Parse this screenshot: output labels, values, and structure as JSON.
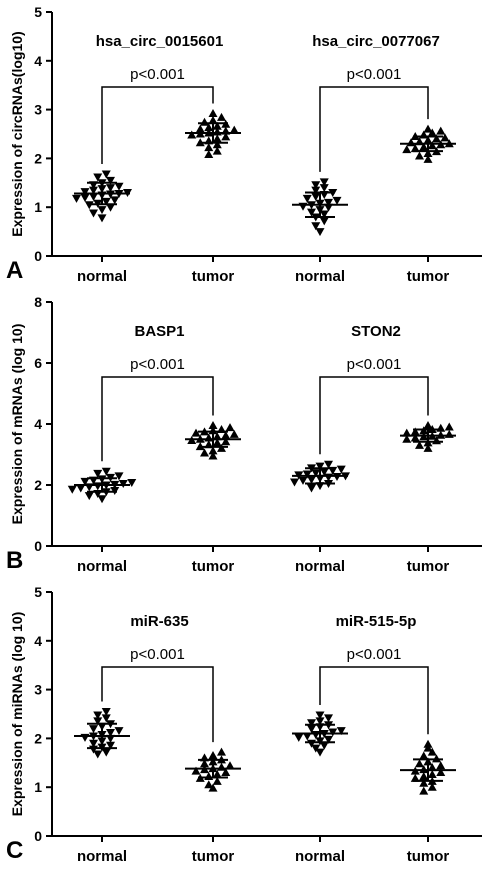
{
  "chart_data": [
    {
      "type": "scatter",
      "panel_label": "A",
      "ylabel": "Expression of circRNAs(log10)",
      "ylim": [
        0,
        5
      ],
      "yticks": [
        0,
        1,
        2,
        3,
        4,
        5
      ],
      "categories": [
        "normal",
        "tumor",
        "normal",
        "tumor"
      ],
      "groups": [
        {
          "title": "hsa_circ_0015601",
          "pvalue": "p<0.001",
          "series": [
            {
              "category": "normal",
              "marker": "triangle-down",
              "mean": 1.28,
              "sd": 0.22,
              "values": [
                0.78,
                0.88,
                0.95,
                1.0,
                1.05,
                1.08,
                1.12,
                1.15,
                1.18,
                1.2,
                1.22,
                1.25,
                1.27,
                1.28,
                1.3,
                1.32,
                1.35,
                1.38,
                1.4,
                1.43,
                1.46,
                1.5,
                1.55,
                1.62,
                1.68
              ]
            },
            {
              "category": "tumor",
              "marker": "triangle-up",
              "mean": 2.52,
              "sd": 0.2,
              "values": [
                2.08,
                2.15,
                2.22,
                2.28,
                2.32,
                2.36,
                2.4,
                2.44,
                2.48,
                2.5,
                2.52,
                2.54,
                2.56,
                2.58,
                2.6,
                2.63,
                2.66,
                2.7,
                2.74,
                2.78,
                2.84,
                2.92
              ]
            }
          ]
        },
        {
          "title": "hsa_circ_0077067",
          "pvalue": "p<0.001",
          "series": [
            {
              "category": "normal",
              "marker": "triangle-down",
              "mean": 1.05,
              "sd": 0.25,
              "values": [
                0.5,
                0.62,
                0.72,
                0.8,
                0.86,
                0.9,
                0.95,
                1.0,
                1.02,
                1.05,
                1.08,
                1.1,
                1.14,
                1.18,
                1.22,
                1.26,
                1.3,
                1.35,
                1.4,
                1.46,
                1.52
              ]
            },
            {
              "category": "tumor",
              "marker": "triangle-up",
              "mean": 2.3,
              "sd": 0.15,
              "values": [
                1.98,
                2.05,
                2.1,
                2.14,
                2.18,
                2.2,
                2.23,
                2.26,
                2.28,
                2.3,
                2.32,
                2.34,
                2.37,
                2.4,
                2.42,
                2.45,
                2.48,
                2.52,
                2.56,
                2.6
              ]
            }
          ]
        }
      ]
    },
    {
      "type": "scatter",
      "panel_label": "B",
      "ylabel": "Expression of mRNAs (log 10)",
      "ylim": [
        0,
        8
      ],
      "yticks": [
        0,
        2,
        4,
        6,
        8
      ],
      "categories": [
        "normal",
        "tumor",
        "normal",
        "tumor"
      ],
      "groups": [
        {
          "title": "BASP1",
          "pvalue": "p<0.001",
          "series": [
            {
              "category": "normal",
              "marker": "triangle-down",
              "mean": 2.0,
              "sd": 0.22,
              "values": [
                1.55,
                1.65,
                1.72,
                1.78,
                1.82,
                1.86,
                1.9,
                1.94,
                1.97,
                2.0,
                2.02,
                2.05,
                2.08,
                2.12,
                2.16,
                2.2,
                2.25,
                2.3,
                2.38,
                2.45
              ]
            },
            {
              "category": "tumor",
              "marker": "triangle-up",
              "mean": 3.5,
              "sd": 0.25,
              "values": [
                2.95,
                3.05,
                3.12,
                3.2,
                3.26,
                3.32,
                3.38,
                3.42,
                3.46,
                3.5,
                3.54,
                3.58,
                3.62,
                3.66,
                3.7,
                3.74,
                3.78,
                3.82,
                3.88,
                3.95
              ]
            }
          ]
        },
        {
          "title": "STON2",
          "pvalue": "p<0.001",
          "series": [
            {
              "category": "normal",
              "marker": "triangle-down",
              "mean": 2.3,
              "sd": 0.25,
              "values": [
                1.9,
                1.98,
                2.05,
                2.1,
                2.15,
                2.18,
                2.22,
                2.26,
                2.28,
                2.3,
                2.33,
                2.36,
                2.4,
                2.44,
                2.48,
                2.52,
                2.56,
                2.62,
                2.68
              ]
            },
            {
              "category": "tumor",
              "marker": "triangle-up",
              "mean": 3.62,
              "sd": 0.2,
              "values": [
                3.2,
                3.3,
                3.38,
                3.45,
                3.5,
                3.54,
                3.58,
                3.6,
                3.63,
                3.66,
                3.7,
                3.74,
                3.78,
                3.82,
                3.86,
                3.9,
                3.95
              ]
            }
          ]
        }
      ]
    },
    {
      "type": "scatter",
      "panel_label": "C",
      "ylabel": "Expression of miRNAs (log 10)",
      "ylim": [
        0,
        5
      ],
      "yticks": [
        0,
        1,
        2,
        3,
        4,
        5
      ],
      "categories": [
        "normal",
        "tumor",
        "normal",
        "tumor"
      ],
      "groups": [
        {
          "title": "miR-635",
          "pvalue": "p<0.001",
          "series": [
            {
              "category": "normal",
              "marker": "triangle-down",
              "mean": 2.05,
              "sd": 0.25,
              "values": [
                1.68,
                1.72,
                1.78,
                1.82,
                1.86,
                1.9,
                1.95,
                2.0,
                2.02,
                2.05,
                2.08,
                2.12,
                2.16,
                2.2,
                2.25,
                2.3,
                2.36,
                2.42,
                2.48,
                2.55
              ]
            },
            {
              "category": "tumor",
              "marker": "triangle-up",
              "mean": 1.38,
              "sd": 0.18,
              "values": [
                0.98,
                1.05,
                1.12,
                1.18,
                1.22,
                1.26,
                1.3,
                1.33,
                1.36,
                1.38,
                1.41,
                1.44,
                1.48,
                1.52,
                1.56,
                1.6,
                1.65,
                1.72
              ]
            }
          ]
        },
        {
          "title": "miR-515-5p",
          "pvalue": "p<0.001",
          "series": [
            {
              "category": "normal",
              "marker": "triangle-down",
              "mean": 2.1,
              "sd": 0.18,
              "values": [
                1.72,
                1.8,
                1.86,
                1.9,
                1.95,
                1.98,
                2.02,
                2.05,
                2.08,
                2.1,
                2.13,
                2.16,
                2.2,
                2.24,
                2.28,
                2.32,
                2.36,
                2.42,
                2.48
              ]
            },
            {
              "category": "tumor",
              "marker": "triangle-up",
              "mean": 1.35,
              "sd": 0.22,
              "values": [
                0.92,
                1.0,
                1.08,
                1.12,
                1.18,
                1.22,
                1.26,
                1.3,
                1.33,
                1.36,
                1.4,
                1.44,
                1.48,
                1.52,
                1.58,
                1.64,
                1.72,
                1.8,
                1.88
              ]
            }
          ]
        }
      ]
    }
  ]
}
